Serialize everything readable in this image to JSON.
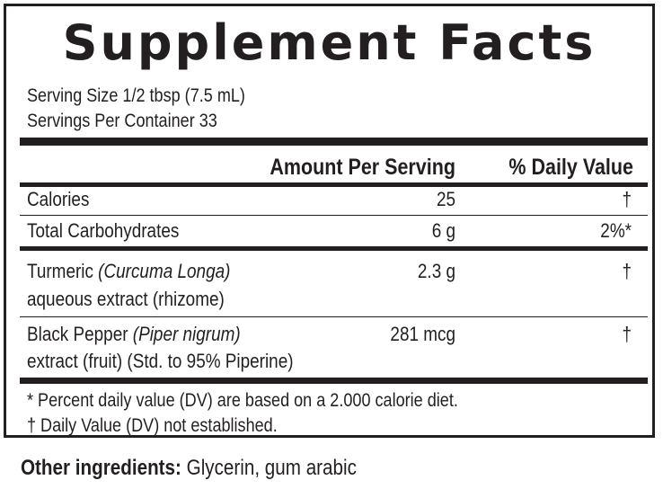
{
  "title": "Supplement Facts",
  "serving_size": "Serving Size 1/2 tbsp (7.5 mL)",
  "servings_per_container": "Servings Per Container 33",
  "header": {
    "amount_per_serving": "Amount Per Serving",
    "daily_value": "% Daily Value"
  },
  "rows": [
    {
      "name": "Calories",
      "amount": "25",
      "dv": "†"
    },
    {
      "name": "Total Carbohydrates",
      "amount": "6 g",
      "dv": "2%*"
    },
    {
      "name": "Turmeric ",
      "name_italic": "(Curcuma Longa)",
      "name_line2": "aqueous extract (rhizome)",
      "amount": "2.3 g",
      "dv": "†"
    },
    {
      "name": "Black Pepper ",
      "name_italic": "(Piper nigrum)",
      "name_line2": "extract (fruit) (Std. to 95% Piperine)",
      "amount": "281 mcg",
      "dv": "†"
    }
  ],
  "footnotes": [
    "* Percent daily value (DV) are based on a 2.000 calorie diet.",
    "† Daily Value (DV) not established."
  ],
  "other_ingredients": {
    "label": "Other ingredients:",
    "value": " Glycerin, gum arabic"
  }
}
